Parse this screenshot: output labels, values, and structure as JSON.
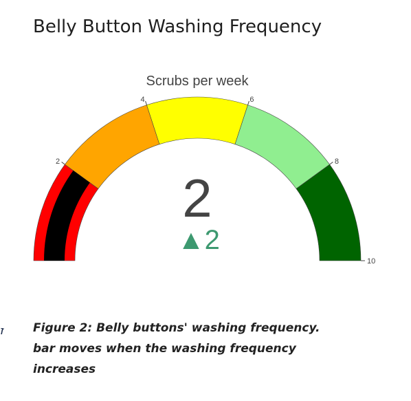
{
  "page": {
    "title": "Belly Button Washing Frequency",
    "stray_glyph": "n",
    "caption_lines": [
      "Figure 2: Belly buttons' washing frequency.",
      "bar moves when the washing frequency",
      "increases"
    ]
  },
  "chart_data": {
    "type": "gauge",
    "title": "Scrubs per week",
    "value": 2,
    "delta": {
      "value": 2,
      "symbol": "▲",
      "color": "#3d9970"
    },
    "axis": {
      "range": [
        0,
        10
      ],
      "tickvals": [
        2,
        4,
        6,
        8,
        10
      ],
      "ticklabels": [
        "2",
        "4",
        "6",
        "8",
        "10"
      ]
    },
    "bar": {
      "value": 2,
      "color": "#000000"
    },
    "steps": [
      {
        "range": [
          0,
          2
        ],
        "color": "#ff0000"
      },
      {
        "range": [
          2,
          4
        ],
        "color": "#ffa500"
      },
      {
        "range": [
          4,
          6
        ],
        "color": "#ffff00"
      },
      {
        "range": [
          6,
          8
        ],
        "color": "#90ee90"
      },
      {
        "range": [
          8,
          10
        ],
        "color": "#006400"
      }
    ],
    "number_color": "#444444"
  }
}
